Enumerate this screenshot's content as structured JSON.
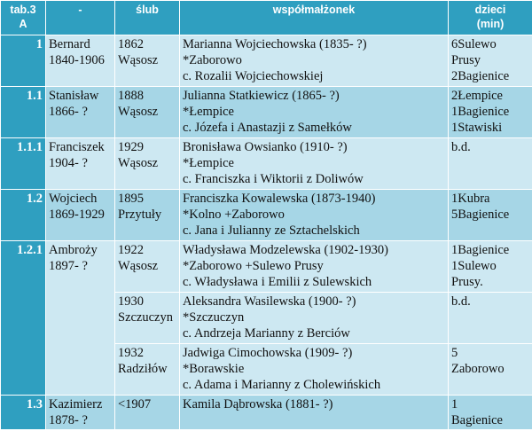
{
  "header": {
    "col1": [
      "tab.3",
      "A"
    ],
    "col2": "-",
    "col3": "ślub",
    "col4": "współmałżonek",
    "col5": [
      "dzieci",
      "(min)"
    ]
  },
  "rows": [
    {
      "id": "1",
      "person": [
        "Bernard",
        "1840-1906"
      ],
      "wedding": [
        "1862",
        "Wąsosz"
      ],
      "spouse": [
        "Marianna Wojciechowska (1835- ?)",
        "*Zaborowo",
        "c. Rozalii Wojciechowskiej"
      ],
      "children": [
        "6Sulewo",
        "Prusy",
        "2Bagienice"
      ]
    },
    {
      "id": "1.1",
      "person": [
        "Stanisław",
        "1866- ?"
      ],
      "wedding": [
        "1888",
        "Wąsosz"
      ],
      "spouse": [
        "Julianna Statkiewicz (1865- ?)",
        "*Łempice",
        "c. Józefa i Anastazji z Samełków"
      ],
      "children": [
        "2Łempice",
        "1Bagienice",
        "1Stawiski"
      ]
    },
    {
      "id": "1.1.1",
      "person": [
        "Franciszek",
        "1904- ?"
      ],
      "wedding": [
        "1929",
        "Wąsosz"
      ],
      "spouse": [
        "Bronisława Owsianko (1910- ?)",
        "*Łempice",
        "c. Franciszka i Wiktorii z Doliwów"
      ],
      "children": [
        "b.d."
      ]
    },
    {
      "id": "1.2",
      "person": [
        "Wojciech",
        "1869-1929"
      ],
      "wedding": [
        "1895",
        "Przytuły"
      ],
      "spouse": [
        "Franciszka Kowalewska (1873-1940)",
        "*Kolno +Zaborowo",
        "c. Jana i Julianny ze Sztachelskich"
      ],
      "children": [
        "1Kubra",
        "5Bagienice"
      ]
    },
    {
      "id": "1.2.1",
      "person": [
        "Ambroży",
        "1897- ?"
      ],
      "wedding": [
        "1922",
        "Wąsosz"
      ],
      "spouse": [
        "Władysława Modzelewska (1902-1930)",
        "*Zaborowo +Sulewo Prusy",
        "c. Władysława i Emilii z Sulewskich"
      ],
      "children": [
        "1Bagienice",
        "1Sulewo",
        "Prusy."
      ]
    },
    {
      "wedding": [
        "1930",
        "Szczuczyn"
      ],
      "spouse": [
        "Aleksandra Wasilewska (1900- ?)",
        "*Szczuczyn",
        "c. Andrzeja Marianny z Berciów"
      ],
      "children": [
        "b.d."
      ]
    },
    {
      "wedding": [
        "1932",
        "Radziłów"
      ],
      "spouse": [
        "Jadwiga Cimochowska (1909- ?)",
        "*Borawskie",
        "c. Adama i Marianny z Cholewińskich"
      ],
      "children": [
        "5",
        "Zaborowo"
      ]
    },
    {
      "id": "1.3",
      "person": [
        "Kazimierz",
        "1878- ?"
      ],
      "wedding": [
        "<1907"
      ],
      "spouse": [
        "Kamila Dąbrowska (1881- ?)"
      ],
      "children": [
        "1",
        "Bagienice"
      ]
    }
  ]
}
